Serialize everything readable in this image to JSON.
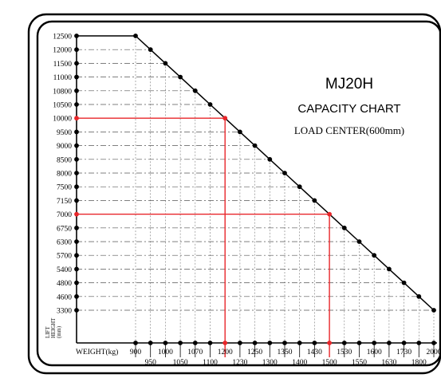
{
  "chart_data": {
    "type": "line",
    "title": "MJ20H",
    "subtitle": "CAPACITY CHART",
    "note": "LOAD CENTER(600mm)",
    "xlabel": "WEIGHT(kg)",
    "ylabel_lines": [
      "LIFT",
      "HEIGHT",
      "(mm)"
    ],
    "x_ticks": [
      "900",
      "950",
      "1000",
      "1050",
      "1070",
      "1100",
      "1200",
      "1230",
      "1250",
      "1300",
      "1350",
      "1400",
      "1430",
      "1500",
      "1530",
      "1550",
      "1600",
      "1630",
      "1730",
      "1800",
      "2000"
    ],
    "y_ticks": [
      "12500",
      "12000",
      "11500",
      "11000",
      "10800",
      "10500",
      "10000",
      "9500",
      "9000",
      "8500",
      "8000",
      "7500",
      "7150",
      "7000",
      "6750",
      "6300",
      "5700",
      "5400",
      "4800",
      "4600",
      "3300"
    ],
    "series": [
      {
        "x": [
          900,
          950,
          1000,
          1050,
          1070,
          1100,
          1200,
          1230,
          1250,
          1300,
          1350,
          1400,
          1430,
          1500,
          1530,
          1550,
          1600,
          1630,
          1730,
          1800,
          2000
        ],
        "y": [
          12500,
          12000,
          11500,
          11000,
          10800,
          10500,
          10000,
          9500,
          9000,
          8500,
          8000,
          7500,
          7150,
          7000,
          6750,
          6300,
          5700,
          5400,
          4800,
          4600,
          3300
        ]
      }
    ],
    "highlights": [
      {
        "x": 1200,
        "y": 10000
      },
      {
        "x": 1500,
        "y": 7000
      }
    ],
    "top_plateau_y": 12500,
    "highlight_color": "#e8262a",
    "line_color": "#000000"
  }
}
